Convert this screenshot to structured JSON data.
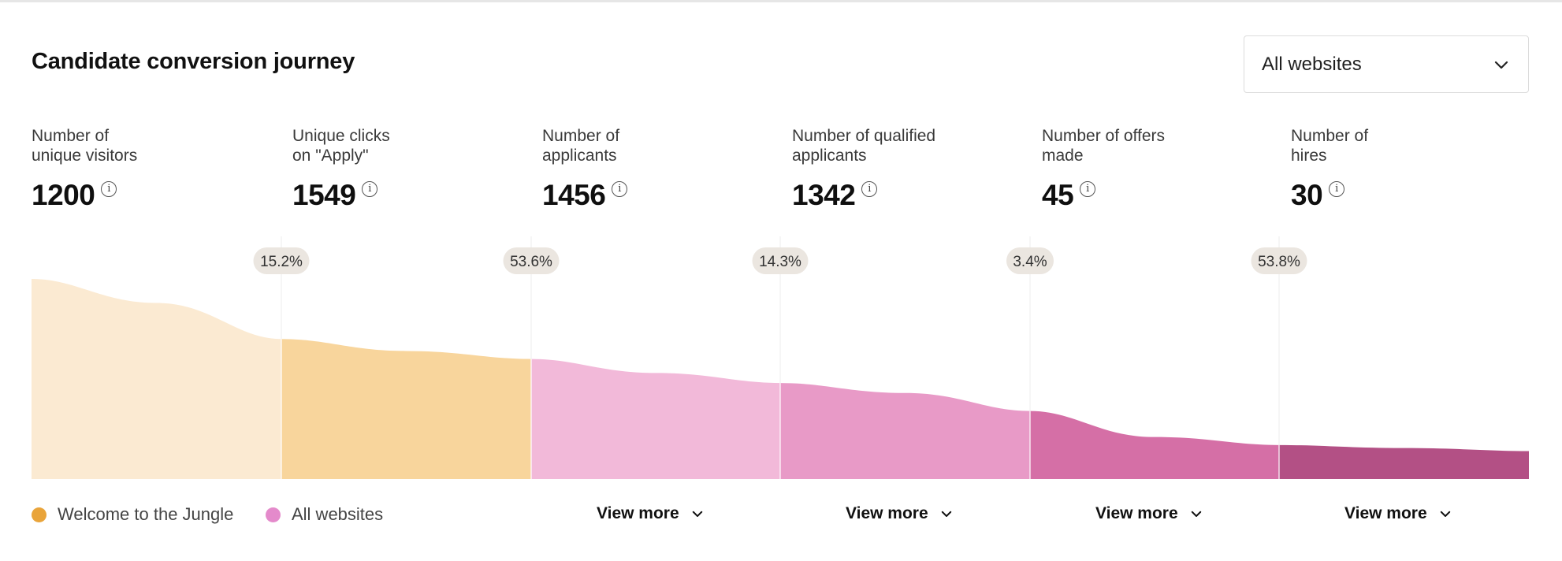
{
  "header": {
    "title": "Candidate conversion journey",
    "dropdown_label": "All websites"
  },
  "stages": [
    {
      "label_line1": "Number of",
      "label_line2": "unique visitors",
      "value": "1200"
    },
    {
      "label_line1": "Unique clicks",
      "label_line2": "on \"Apply\"",
      "value": "1549"
    },
    {
      "label_line1": "Number of",
      "label_line2": "applicants",
      "value": "1456"
    },
    {
      "label_line1": "Number of qualified",
      "label_line2": "applicants",
      "value": "1342"
    },
    {
      "label_line1": "Number of offers",
      "label_line2": "made",
      "value": "45"
    },
    {
      "label_line1": "Number of",
      "label_line2": "hires",
      "value": "30"
    }
  ],
  "legend": [
    {
      "label": "Welcome to the Jungle",
      "color": "#E9A43A"
    },
    {
      "label": "All websites",
      "color": "#E48ACB"
    }
  ],
  "view_more_label": "View more",
  "chart_data": {
    "type": "area",
    "categories": [
      "Number of unique visitors",
      "Unique clicks on \"Apply\"",
      "Number of applicants",
      "Number of qualified applicants",
      "Number of offers made",
      "Number of hires"
    ],
    "conversion_rates": [
      "15.2%",
      "53.6%",
      "14.3%",
      "3.4%",
      "53.8%"
    ],
    "segment_colors": [
      "#FBEAD2",
      "#F8D59C",
      "#F2B9D9",
      "#E89AC7",
      "#D56FA6",
      "#B35085"
    ],
    "ylim": [
      0,
      100
    ],
    "segments": [
      {
        "start": 100,
        "mid": 88,
        "end": 70
      },
      {
        "start": 70,
        "mid": 64,
        "end": 60
      },
      {
        "start": 60,
        "mid": 53,
        "end": 48
      },
      {
        "start": 48,
        "mid": 43,
        "end": 34
      },
      {
        "start": 34,
        "mid": 21,
        "end": 17
      },
      {
        "start": 17,
        "mid": 15.5,
        "end": 14
      }
    ]
  }
}
